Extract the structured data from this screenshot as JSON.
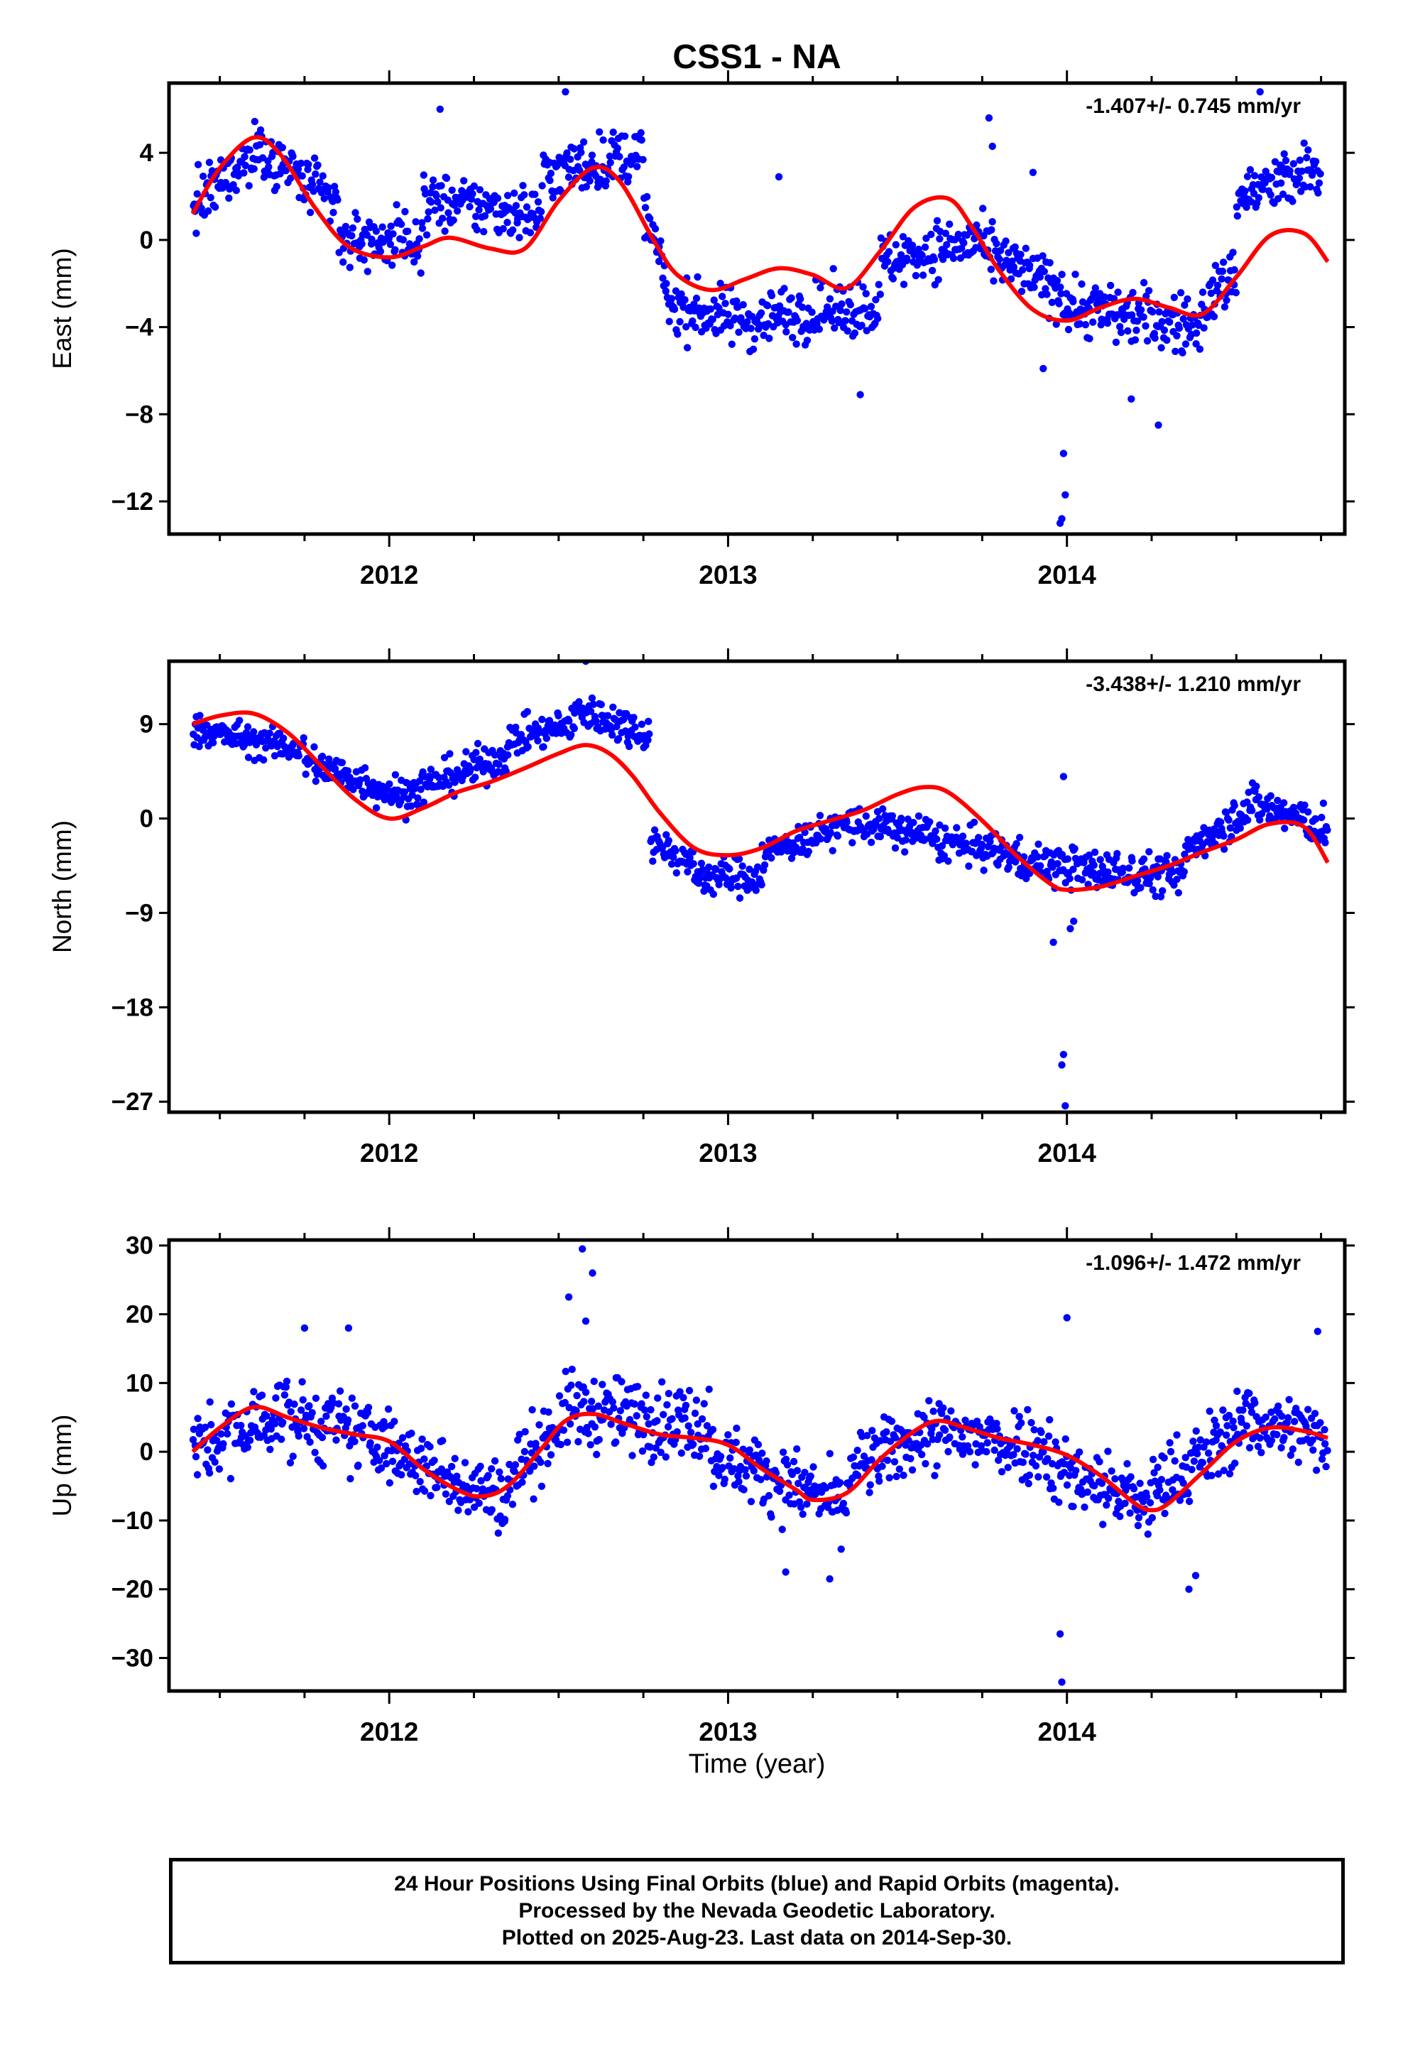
{
  "page_title": "CSS1 - NA",
  "x_axis_label": "Time (year)",
  "footer": {
    "line1": "24 Hour Positions Using Final Orbits (blue) and Rapid Orbits (magenta).",
    "line2": "Processed by the Nevada Geodetic Laboratory.",
    "line3": "Plotted on 2025-Aug-23. Last data on 2014-Sep-30."
  },
  "colors": {
    "points": "#0000ff",
    "model": "#ff0000",
    "axes": "#000000"
  },
  "chart_data": [
    {
      "type": "scatter",
      "ylabel": "East (mm)",
      "rate_label": "-1.407+/- 0.745 mm/yr",
      "xlim": [
        2011.35,
        2014.82
      ],
      "ylim": [
        -13.5,
        7.2
      ],
      "yticks": [
        4,
        0,
        -4,
        -8,
        -12
      ],
      "ytick_labels": [
        "4",
        "0",
        "−4",
        "−8",
        "−12"
      ],
      "xticks": [
        2012,
        2013,
        2014
      ],
      "xtick_labels": [
        "2012",
        "2013",
        "2014"
      ],
      "x_minor_ticks": [
        2011.5,
        2011.75,
        2012.25,
        2012.5,
        2012.75,
        2013.25,
        2013.5,
        2013.75,
        2014.25,
        2014.5,
        2014.75
      ],
      "model_x": [
        2011.42,
        2011.5,
        2011.6,
        2011.68,
        2011.78,
        2011.88,
        2012.0,
        2012.1,
        2012.18,
        2012.3,
        2012.4,
        2012.5,
        2012.6,
        2012.68,
        2012.78,
        2012.85,
        2012.95,
        2013.05,
        2013.15,
        2013.25,
        2013.35,
        2013.45,
        2013.55,
        2013.65,
        2013.72,
        2013.8,
        2013.9,
        2014.0,
        2014.1,
        2014.2,
        2014.3,
        2014.4,
        2014.5,
        2014.6,
        2014.7,
        2014.77
      ],
      "model_y": [
        1.2,
        3.3,
        4.7,
        3.9,
        1.5,
        -0.3,
        -0.8,
        -0.3,
        0.1,
        -0.4,
        -0.4,
        1.8,
        3.3,
        2.7,
        0.0,
        -1.6,
        -2.3,
        -1.8,
        -1.3,
        -1.6,
        -2.2,
        -0.5,
        1.5,
        1.9,
        0.6,
        -1.4,
        -3.2,
        -3.7,
        -3.1,
        -2.7,
        -3.1,
        -3.4,
        -1.7,
        0.2,
        0.3,
        -1.0
      ],
      "point_segments": [
        {
          "x": [
            2011.42,
            2011.62
          ],
          "base": [
            1.5,
            4.2
          ],
          "spread": 1.3
        },
        {
          "x": [
            2011.62,
            2011.85
          ],
          "base": [
            4.2,
            1.5
          ],
          "spread": 1.3
        },
        {
          "x": [
            2011.85,
            2012.1
          ],
          "base": [
            0.0,
            0.0
          ],
          "spread": 1.3
        },
        {
          "x": [
            2012.1,
            2012.45
          ],
          "base": [
            1.8,
            1.2
          ],
          "spread": 1.3
        },
        {
          "x": [
            2012.45,
            2012.75
          ],
          "base": [
            3.0,
            4.0
          ],
          "spread": 1.3
        },
        {
          "x": [
            2012.75,
            2012.82
          ],
          "base": [
            1.5,
            -2.0
          ],
          "spread": 1.0
        },
        {
          "x": [
            2012.82,
            2013.1
          ],
          "base": [
            -3.0,
            -3.8
          ],
          "spread": 1.3
        },
        {
          "x": [
            2013.1,
            2013.45
          ],
          "base": [
            -3.5,
            -3.0
          ],
          "spread": 1.3
        },
        {
          "x": [
            2013.45,
            2013.75
          ],
          "base": [
            -1.0,
            0.0
          ],
          "spread": 1.3
        },
        {
          "x": [
            2013.75,
            2014.0
          ],
          "base": [
            -0.5,
            -2.5
          ],
          "spread": 1.3
        },
        {
          "x": [
            2014.0,
            2014.4
          ],
          "base": [
            -3.0,
            -4.0
          ],
          "spread": 1.4
        },
        {
          "x": [
            2014.4,
            2014.5
          ],
          "base": [
            -3.0,
            -1.5
          ],
          "spread": 1.3
        },
        {
          "x": [
            2014.5,
            2014.75
          ],
          "base": [
            2.0,
            3.2
          ],
          "spread": 1.4
        }
      ],
      "outliers": [
        [
          2013.99,
          -9.8
        ],
        [
          2013.995,
          -11.7
        ],
        [
          2013.985,
          -12.8
        ],
        [
          2013.98,
          -13.0
        ],
        [
          2013.93,
          -5.9
        ],
        [
          2014.27,
          -8.5
        ],
        [
          2014.19,
          -7.3
        ],
        [
          2013.77,
          5.6
        ],
        [
          2013.78,
          4.3
        ],
        [
          2012.52,
          6.8
        ],
        [
          2014.57,
          6.8
        ],
        [
          2012.15,
          6.0
        ],
        [
          2013.15,
          2.9
        ],
        [
          2013.39,
          -7.1
        ],
        [
          2013.9,
          3.1
        ]
      ]
    },
    {
      "type": "scatter",
      "ylabel": "North (mm)",
      "rate_label": "-3.438+/- 1.210 mm/yr",
      "xlim": [
        2011.35,
        2014.82
      ],
      "ylim": [
        -28,
        15
      ],
      "yticks": [
        9,
        0,
        -9,
        -18,
        -27
      ],
      "ytick_labels": [
        "9",
        "0",
        "−9",
        "−18",
        "−27"
      ],
      "xticks": [
        2012,
        2013,
        2014
      ],
      "xtick_labels": [
        "2012",
        "2013",
        "2014"
      ],
      "x_minor_ticks": [
        2011.5,
        2011.75,
        2012.25,
        2012.5,
        2012.75,
        2013.25,
        2013.5,
        2013.75,
        2014.25,
        2014.5,
        2014.75
      ],
      "model_x": [
        2011.42,
        2011.5,
        2011.6,
        2011.7,
        2011.8,
        2011.9,
        2012.0,
        2012.1,
        2012.2,
        2012.3,
        2012.4,
        2012.5,
        2012.58,
        2012.65,
        2012.72,
        2012.8,
        2012.9,
        2013.0,
        2013.1,
        2013.2,
        2013.3,
        2013.4,
        2013.5,
        2013.58,
        2013.65,
        2013.75,
        2013.85,
        2013.95,
        2014.0,
        2014.1,
        2014.2,
        2014.3,
        2014.4,
        2014.5,
        2014.6,
        2014.7,
        2014.77
      ],
      "model_y": [
        9.0,
        9.8,
        10.0,
        8.2,
        5.0,
        1.8,
        0.0,
        1.0,
        2.5,
        3.5,
        4.8,
        6.2,
        7.0,
        6.2,
        4.0,
        0.5,
        -2.8,
        -3.5,
        -2.8,
        -1.2,
        -0.2,
        0.8,
        2.3,
        3.0,
        2.5,
        -0.2,
        -3.5,
        -6.2,
        -6.8,
        -6.5,
        -5.5,
        -4.5,
        -3.2,
        -2.0,
        -0.5,
        -0.8,
        -4.2
      ],
      "point_segments": [
        {
          "x": [
            2011.42,
            2011.75
          ],
          "base": [
            8.5,
            6.5
          ],
          "spread": 1.5
        },
        {
          "x": [
            2011.75,
            2012.05
          ],
          "base": [
            5.5,
            2.0
          ],
          "spread": 1.8
        },
        {
          "x": [
            2012.05,
            2012.35
          ],
          "base": [
            2.5,
            6.0
          ],
          "spread": 1.8
        },
        {
          "x": [
            2012.35,
            2012.55
          ],
          "base": [
            7.5,
            9.0
          ],
          "spread": 1.6
        },
        {
          "x": [
            2012.55,
            2012.77
          ],
          "base": [
            10.5,
            8.0
          ],
          "spread": 1.8
        },
        {
          "x": [
            2012.77,
            2012.9
          ],
          "base": [
            -2.0,
            -4.5
          ],
          "spread": 1.6
        },
        {
          "x": [
            2012.9,
            2013.1
          ],
          "base": [
            -5.5,
            -5.5
          ],
          "spread": 1.8
        },
        {
          "x": [
            2013.1,
            2013.35
          ],
          "base": [
            -3.5,
            -0.5
          ],
          "spread": 1.6
        },
        {
          "x": [
            2013.35,
            2013.6
          ],
          "base": [
            -0.5,
            -1.5
          ],
          "spread": 1.8
        },
        {
          "x": [
            2013.6,
            2013.85
          ],
          "base": [
            -2.0,
            -3.5
          ],
          "spread": 1.8
        },
        {
          "x": [
            2013.85,
            2014.1
          ],
          "base": [
            -4.0,
            -5.0
          ],
          "spread": 2.0
        },
        {
          "x": [
            2014.1,
            2014.35
          ],
          "base": [
            -5.0,
            -5.5
          ],
          "spread": 2.0
        },
        {
          "x": [
            2014.35,
            2014.55
          ],
          "base": [
            -3.0,
            1.5
          ],
          "spread": 2.0
        },
        {
          "x": [
            2014.55,
            2014.77
          ],
          "base": [
            1.5,
            -1.0
          ],
          "spread": 2.0
        }
      ],
      "outliers": [
        [
          2013.99,
          4.0
        ],
        [
          2013.99,
          -22.5
        ],
        [
          2013.985,
          -23.5
        ],
        [
          2013.995,
          -27.4
        ],
        [
          2012.58,
          15.0
        ],
        [
          2014.02,
          -9.8
        ],
        [
          2013.96,
          -11.8
        ],
        [
          2014.01,
          -10.5
        ]
      ]
    },
    {
      "type": "scatter",
      "ylabel": "Up (mm)",
      "rate_label": "-1.096+/- 1.472 mm/yr",
      "xlim": [
        2011.35,
        2014.82
      ],
      "ylim": [
        -34.8,
        30.8
      ],
      "yticks": [
        30,
        20,
        10,
        0,
        -10,
        -20,
        -30
      ],
      "ytick_labels": [
        "30",
        "20",
        "10",
        "0",
        "−10",
        "−20",
        "−30"
      ],
      "xticks": [
        2012,
        2013,
        2014
      ],
      "xtick_labels": [
        "2012",
        "2013",
        "2014"
      ],
      "x_minor_ticks": [
        2011.5,
        2011.75,
        2012.25,
        2012.5,
        2012.75,
        2013.25,
        2013.5,
        2013.75,
        2014.25,
        2014.5,
        2014.75
      ],
      "model_x": [
        2011.42,
        2011.5,
        2011.6,
        2011.7,
        2011.8,
        2011.9,
        2012.0,
        2012.1,
        2012.2,
        2012.27,
        2012.35,
        2012.45,
        2012.52,
        2012.6,
        2012.7,
        2012.8,
        2012.9,
        2013.0,
        2013.1,
        2013.2,
        2013.25,
        2013.35,
        2013.45,
        2013.55,
        2013.62,
        2013.7,
        2013.8,
        2013.9,
        2014.0,
        2014.1,
        2014.2,
        2014.25,
        2014.3,
        2014.4,
        2014.5,
        2014.6,
        2014.7,
        2014.77
      ],
      "model_y": [
        0.0,
        3.5,
        6.5,
        5.0,
        3.5,
        2.5,
        1.5,
        -2.5,
        -5.5,
        -6.5,
        -5.0,
        0.5,
        4.5,
        5.5,
        4.0,
        2.5,
        2.0,
        1.0,
        -2.5,
        -5.5,
        -7.0,
        -6.0,
        -1.0,
        3.0,
        4.5,
        3.5,
        2.0,
        1.0,
        -0.5,
        -3.5,
        -7.5,
        -8.5,
        -7.5,
        -3.0,
        1.5,
        3.5,
        3.0,
        2.0
      ],
      "point_segments": [
        {
          "x": [
            2011.42,
            2011.7
          ],
          "base": [
            0.0,
            6.0
          ],
          "spread": 5.5
        },
        {
          "x": [
            2011.7,
            2012.0
          ],
          "base": [
            5.0,
            1.5
          ],
          "spread": 5.5
        },
        {
          "x": [
            2012.0,
            2012.35
          ],
          "base": [
            0.0,
            -7.0
          ],
          "spread": 5.0
        },
        {
          "x": [
            2012.35,
            2012.55
          ],
          "base": [
            -4.0,
            7.0
          ],
          "spread": 5.5
        },
        {
          "x": [
            2012.55,
            2012.95
          ],
          "base": [
            6.0,
            4.0
          ],
          "spread": 5.5
        },
        {
          "x": [
            2012.95,
            2013.35
          ],
          "base": [
            0.0,
            -8.0
          ],
          "spread": 5.0
        },
        {
          "x": [
            2013.35,
            2013.6
          ],
          "base": [
            -3.0,
            3.0
          ],
          "spread": 5.0
        },
        {
          "x": [
            2013.6,
            2013.95
          ],
          "base": [
            2.5,
            1.0
          ],
          "spread": 5.5
        },
        {
          "x": [
            2013.95,
            2014.25
          ],
          "base": [
            -2.0,
            -8.0
          ],
          "spread": 5.5
        },
        {
          "x": [
            2014.25,
            2014.5
          ],
          "base": [
            -6.0,
            3.0
          ],
          "spread": 5.5
        },
        {
          "x": [
            2014.5,
            2014.77
          ],
          "base": [
            5.0,
            2.0
          ],
          "spread": 5.0
        }
      ],
      "outliers": [
        [
          2013.98,
          -26.5
        ],
        [
          2013.985,
          -33.5
        ],
        [
          2012.57,
          29.5
        ],
        [
          2012.6,
          26.0
        ],
        [
          2012.53,
          22.5
        ],
        [
          2014.0,
          19.5
        ],
        [
          2012.58,
          19.0
        ],
        [
          2014.38,
          -18.0
        ],
        [
          2014.36,
          -20.0
        ],
        [
          2013.3,
          -18.5
        ],
        [
          2013.17,
          -17.5
        ],
        [
          2014.74,
          17.5
        ],
        [
          2011.75,
          18.0
        ],
        [
          2011.88,
          18.0
        ]
      ]
    }
  ]
}
